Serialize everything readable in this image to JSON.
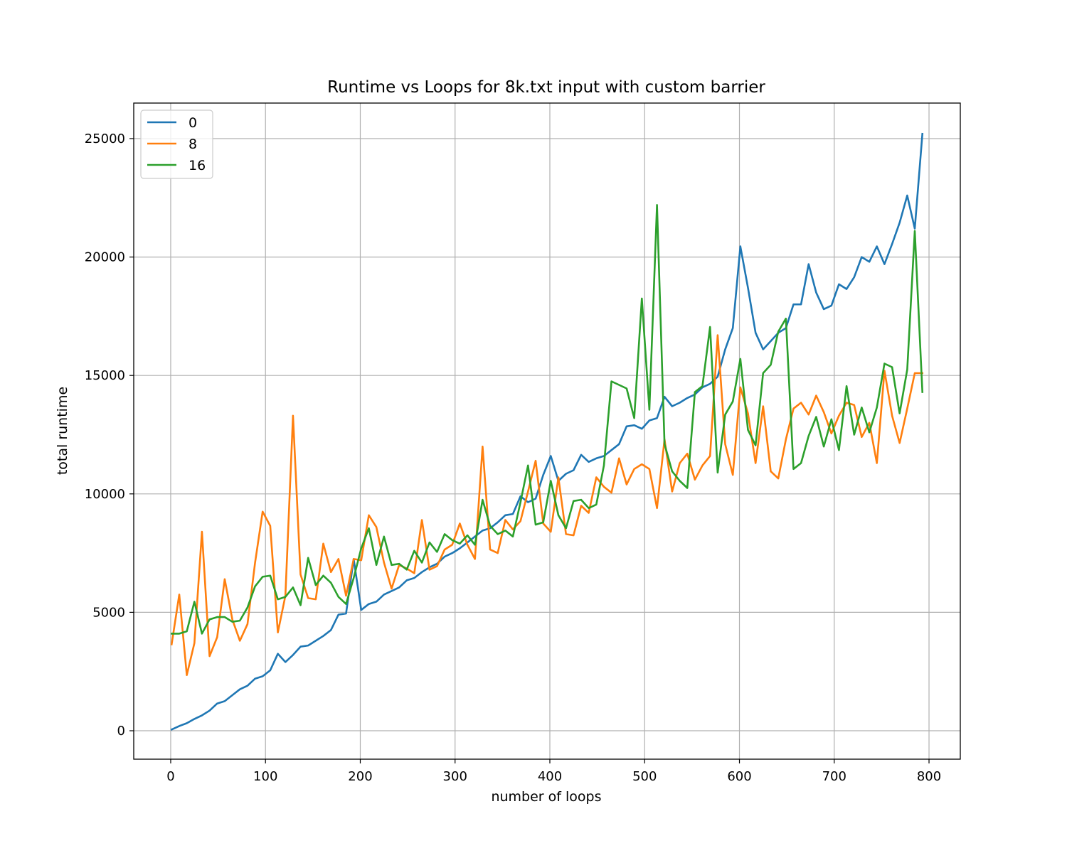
{
  "chart_data": {
    "type": "line",
    "title": "Runtime vs Loops for 8k.txt input with custom barrier",
    "xlabel": "number of loops",
    "ylabel": "total runtime",
    "xlim": [
      -39,
      833
    ],
    "ylim": [
      -1200,
      26500
    ],
    "xticks": [
      0,
      100,
      200,
      300,
      400,
      500,
      600,
      700,
      800
    ],
    "yticks": [
      0,
      5000,
      10000,
      15000,
      20000,
      25000
    ],
    "grid": true,
    "legend_position": "top-left",
    "x": [
      1,
      9,
      17,
      25,
      33,
      41,
      49,
      57,
      65,
      73,
      81,
      89,
      97,
      105,
      113,
      121,
      129,
      137,
      145,
      153,
      161,
      169,
      177,
      185,
      193,
      201,
      209,
      217,
      225,
      233,
      241,
      249,
      257,
      265,
      273,
      281,
      289,
      297,
      305,
      313,
      321,
      329,
      337,
      345,
      353,
      361,
      369,
      377,
      385,
      393,
      401,
      409,
      417,
      425,
      433,
      441,
      449,
      457,
      465,
      473,
      481,
      489,
      497,
      505,
      513,
      521,
      529,
      537,
      545,
      553,
      561,
      569,
      577,
      585,
      593,
      601,
      609,
      617,
      625,
      633,
      641,
      649,
      657,
      665,
      673,
      681,
      689,
      697,
      705,
      713,
      721,
      729,
      737,
      745,
      753,
      761,
      769,
      777,
      785,
      793
    ],
    "series": [
      {
        "name": "0",
        "color": "#1f77b4",
        "values": [
          50,
          200,
          320,
          500,
          650,
          850,
          1150,
          1250,
          1500,
          1750,
          1900,
          2200,
          2300,
          2550,
          3250,
          2900,
          3200,
          3550,
          3600,
          3800,
          4000,
          4250,
          4900,
          4950,
          7250,
          5100,
          5350,
          5450,
          5750,
          5900,
          6050,
          6350,
          6450,
          6700,
          6900,
          7050,
          7350,
          7500,
          7700,
          7950,
          8200,
          8450,
          8550,
          8800,
          9100,
          9150,
          9900,
          9650,
          9800,
          10800,
          11600,
          10550,
          10850,
          11000,
          11650,
          11350,
          11500,
          11600,
          11850,
          12100,
          12850,
          12900,
          12750,
          13100,
          13200,
          14100,
          13700,
          13850,
          14050,
          14200,
          14500,
          14650,
          14950,
          16100,
          17000,
          20450,
          18700,
          16800,
          16100,
          16450,
          16800,
          17000,
          18000,
          18000,
          19700,
          18500,
          17800,
          17950,
          18850,
          18650,
          19150,
          20000,
          19800,
          20450,
          19700,
          20550,
          21450,
          22600,
          21200,
          25200
        ]
      },
      {
        "name": "8",
        "color": "#ff7f0e",
        "values": [
          3650,
          5750,
          2350,
          3700,
          8400,
          3150,
          3950,
          6400,
          4700,
          3800,
          4500,
          7100,
          9250,
          8650,
          4150,
          5700,
          13300,
          6600,
          5600,
          5550,
          7900,
          6700,
          7250,
          5700,
          7250,
          7200,
          9100,
          8600,
          7100,
          6000,
          7000,
          6850,
          6650,
          8900,
          6800,
          6950,
          7650,
          7850,
          8750,
          7850,
          7250,
          12000,
          7650,
          7500,
          8900,
          8500,
          8850,
          10100,
          11400,
          8750,
          8400,
          10700,
          8300,
          8250,
          9500,
          9200,
          10700,
          10300,
          10050,
          11500,
          10400,
          11050,
          11250,
          11050,
          9400,
          12300,
          10100,
          11300,
          11700,
          10600,
          11200,
          11600,
          16700,
          12100,
          10800,
          14500,
          13400,
          11300,
          13700,
          10950,
          10650,
          12300,
          13600,
          13850,
          13350,
          14150,
          13450,
          12550,
          13300,
          13850,
          13750,
          12400,
          13000,
          11300,
          15200,
          13300,
          12150,
          13600,
          15100,
          15100
        ]
      },
      {
        "name": "16",
        "color": "#2ca02c",
        "values": [
          4100,
          4100,
          4200,
          5450,
          4100,
          4700,
          4800,
          4800,
          4600,
          4650,
          5200,
          6100,
          6500,
          6550,
          5550,
          5650,
          6050,
          5300,
          7300,
          6150,
          6550,
          6250,
          5650,
          5350,
          6450,
          7700,
          8550,
          7000,
          8200,
          7000,
          7050,
          6800,
          7600,
          7100,
          7950,
          7550,
          8300,
          8050,
          7900,
          8250,
          7850,
          9750,
          8650,
          8300,
          8450,
          8200,
          9650,
          11200,
          8700,
          8800,
          10550,
          9100,
          8550,
          9700,
          9750,
          9400,
          9550,
          11200,
          14750,
          14600,
          14450,
          13200,
          18250,
          13550,
          22200,
          12100,
          10950,
          10550,
          10250,
          14300,
          14550,
          17050,
          10900,
          13350,
          13900,
          15700,
          12700,
          12050,
          15100,
          15450,
          16850,
          17400,
          11050,
          11300,
          12450,
          13250,
          12000,
          13150,
          11850,
          14550,
          12500,
          13650,
          12600,
          13650,
          15500,
          15350,
          13400,
          15250,
          21100,
          14300
        ]
      }
    ]
  }
}
